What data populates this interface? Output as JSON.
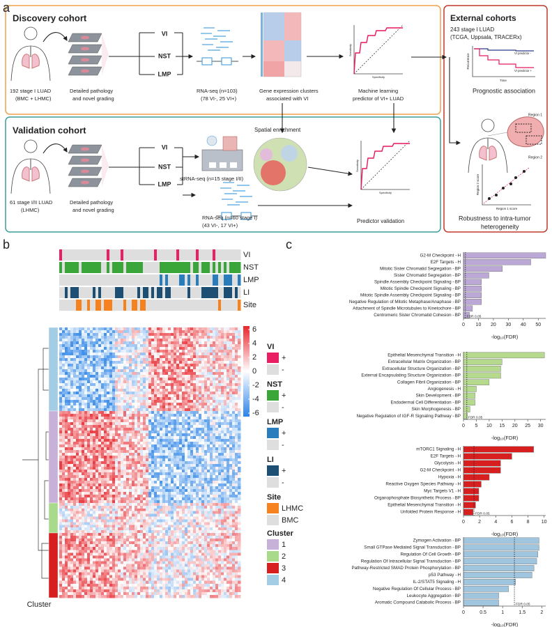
{
  "panel_labels": [
    "a",
    "b",
    "c"
  ],
  "panel_a": {
    "discovery": {
      "title": "Discovery cohort",
      "cohort": [
        "192 stage I LUAD",
        "(BMC + LHMC)"
      ],
      "pathology": [
        "Detailed pathology",
        "and novel grading"
      ],
      "grades": [
        "VI",
        "NST",
        "LMP"
      ],
      "rnaseq": [
        "RNA-seq (n=103)",
        "(78 VI-, 25 VI+)"
      ],
      "clusters": [
        "Gene expression clusters",
        "associated with VI"
      ],
      "ml": [
        "Machine learning",
        "predictor of VI+ LUAD"
      ],
      "roc_axes": [
        "Sensitivity",
        "Specificity"
      ]
    },
    "validation": {
      "title": "Validation cohort",
      "cohort": [
        "61 stage I/II LUAD",
        "(LHMC)"
      ],
      "pathology": [
        "Detailed pathology",
        "and novel grading"
      ],
      "grades": [
        "VI",
        "NST",
        "LMP"
      ],
      "strnaseq": "stRNA-seq (n=15 stage I/II)",
      "spatial": "Spatial enrichment",
      "rnaseq": [
        "RNA-seq (n=60 stage I)",
        "(43 VI-, 17 VI+)"
      ],
      "predictor": "Predictor validation",
      "roc_axes": [
        "Sensitivity",
        "Specificity"
      ]
    },
    "external": {
      "title": "External cohorts",
      "cohort": [
        "243 stage I LUAD",
        "(TCGA, Uppsala, TRACERx)"
      ],
      "km_axes": [
        "Recurrence",
        "Time"
      ],
      "km_legend": [
        "VI predictor -",
        "VI predictor +"
      ],
      "prognostic": "Prognostic association",
      "regions": [
        "Region 1",
        "Region 2"
      ],
      "scatter_axes": [
        "Region 2 score",
        "Region 1 score"
      ],
      "robustness": [
        "Robustness to intra-tumor",
        "heterogeneity"
      ]
    }
  },
  "heatmap": {
    "annotation_rows": [
      "VI",
      "NST",
      "LMP",
      "LI",
      "Site"
    ],
    "cluster_label": "Cluster",
    "colormap": [
      "#2b83e8",
      "#ffffff",
      "#e8262d"
    ],
    "clim": [
      -6.5,
      6.5
    ],
    "colorbar_ticks": [
      6,
      4,
      2,
      0,
      -2,
      -4,
      -6
    ],
    "legend": [
      {
        "title": "VI",
        "items": [
          {
            "label": "+",
            "color": "#ea1e63"
          },
          {
            "label": "-",
            "color": "#dedede"
          }
        ]
      },
      {
        "title": "NST",
        "items": [
          {
            "label": "+",
            "color": "#3aa63a"
          },
          {
            "label": "-",
            "color": "#dedede"
          }
        ]
      },
      {
        "title": "LMP",
        "items": [
          {
            "label": "+",
            "color": "#2a7dbd"
          },
          {
            "label": "-",
            "color": "#dedede"
          }
        ]
      },
      {
        "title": "LI",
        "items": [
          {
            "label": "+",
            "color": "#1d4f74"
          },
          {
            "label": "-",
            "color": "#dedede"
          }
        ]
      },
      {
        "title": "Site",
        "items": [
          {
            "label": "LHMC",
            "color": "#f5821f"
          },
          {
            "label": "BMC",
            "color": "#dedede"
          }
        ]
      },
      {
        "title": "Cluster",
        "items": [
          {
            "label": "1",
            "color": "#c7b1d9"
          },
          {
            "label": "2",
            "color": "#a9d98a"
          },
          {
            "label": "3",
            "color": "#d71f20"
          },
          {
            "label": "4",
            "color": "#a3cde4"
          }
        ]
      }
    ]
  },
  "chart_data": [
    {
      "type": "barh",
      "color": "#bca8d6",
      "xlabel": "-log₁₀(FDR)",
      "xlim": [
        0,
        55
      ],
      "xticks": [
        0,
        10,
        20,
        30,
        40,
        50
      ],
      "reference_line": {
        "value": 1.3,
        "label": "FDR 0.05"
      },
      "categories": [
        "G2-M Checkpoint",
        "E2F Targets",
        "Mitotic Sister Chromatid Segregation",
        "Sister Chromatid Segregation",
        "Spindle Assembly Checkpoint Signaling",
        "Mitotic Spindle Checkpoint Signaling",
        "Mitotic Spindle Assembly Checkpoint Signaling",
        "Negative Regulation of Mitotic Metaphase/Anaphase",
        "Attachment of Spindle Microtubules to Kinetochore",
        "Centromeric Sister Chromatid Cohesion"
      ],
      "collections": [
        "H",
        "H",
        "BP",
        "BP",
        "BP",
        "BP",
        "BP",
        "BP",
        "BP",
        "BP"
      ],
      "values": [
        55,
        45,
        26,
        17,
        12,
        12,
        12,
        12,
        6,
        4
      ]
    },
    {
      "type": "barh",
      "color": "#b5da8e",
      "xlabel": "-log₁₀(FDR)",
      "xlim": [
        0,
        32
      ],
      "xticks": [
        0,
        5,
        10,
        15,
        20,
        25,
        30
      ],
      "reference_line": {
        "value": 1.3,
        "label": "FDR 0.05"
      },
      "categories": [
        "Epithelial Mesenchymal Transition",
        "Extracellular Matrix Organization",
        "Extracellular Structure Organization",
        "External Encapsulating Structure Organization",
        "Collagen Fibril Organization",
        "Angiogenesis",
        "Skin Development",
        "Endodermal Cell Differentiation",
        "Skin Morphogenesis",
        "Negative Regulation of IGF-R Signaling Pathway"
      ],
      "collections": [
        "H",
        "BP",
        "BP",
        "BP",
        "BP",
        "H",
        "BP",
        "BP",
        "BP",
        "BP"
      ],
      "values": [
        31.5,
        15,
        14.5,
        14.5,
        10,
        5,
        4.5,
        4.5,
        2.5,
        1.5
      ]
    },
    {
      "type": "barh",
      "color": "#d71f20",
      "xlabel": "-log₁₀(FDR)",
      "xlim": [
        0,
        10.2
      ],
      "xticks": [
        0,
        2,
        4,
        6,
        8,
        10
      ],
      "reference_line": {
        "value": 1.3,
        "label": "FDR 0.05"
      },
      "categories": [
        "mTORC1 Signaling",
        "E2F Targets",
        "Glycolysis",
        "G2-M Checkpoint",
        "Hypoxia",
        "Reactive Oxygen Species Pathway",
        "Myc Targets V1",
        "Organophosphate Biosynthetic Process",
        "Epithelial Mesenchymal Transition",
        "Unfolded Protein Response"
      ],
      "collections": [
        "H",
        "H",
        "H",
        "H",
        "H",
        "H",
        "H",
        "BP",
        "H",
        "H"
      ],
      "values": [
        8.7,
        6,
        4.6,
        4.6,
        3.2,
        2.2,
        1.9,
        1.9,
        1.5,
        1.2
      ]
    },
    {
      "type": "barh",
      "color": "#9fc5df",
      "xlabel": "-log₁₀(FDR)",
      "xlim": [
        0,
        2.1
      ],
      "xticks": [
        0,
        0.5,
        1,
        1.5,
        2
      ],
      "reference_line": {
        "value": 1.3,
        "label": "FDR 0.05"
      },
      "categories": [
        "Zymogen Activation",
        "Small GTPase Mediated Signal Transduction",
        "Regulation Of Cell Growth",
        "Regulation Of Intracellular Signal Transduction",
        "Pathway-Restricted SMAD Protein Phosphorylation",
        "p53 Pathway",
        "IL-2/STAT5 Signaling",
        "Negative Regulation Of Cellular Process",
        "Leukocyte Aggregation",
        "Aromatic Compound Catabolic Process"
      ],
      "collections": [
        "BP",
        "BP",
        "BP",
        "BP",
        "BP",
        "H",
        "H",
        "BP",
        "BP",
        "BP"
      ],
      "values": [
        1.93,
        1.93,
        1.9,
        1.87,
        1.8,
        1.75,
        1.33,
        1.15,
        0.9,
        0.9
      ]
    }
  ]
}
